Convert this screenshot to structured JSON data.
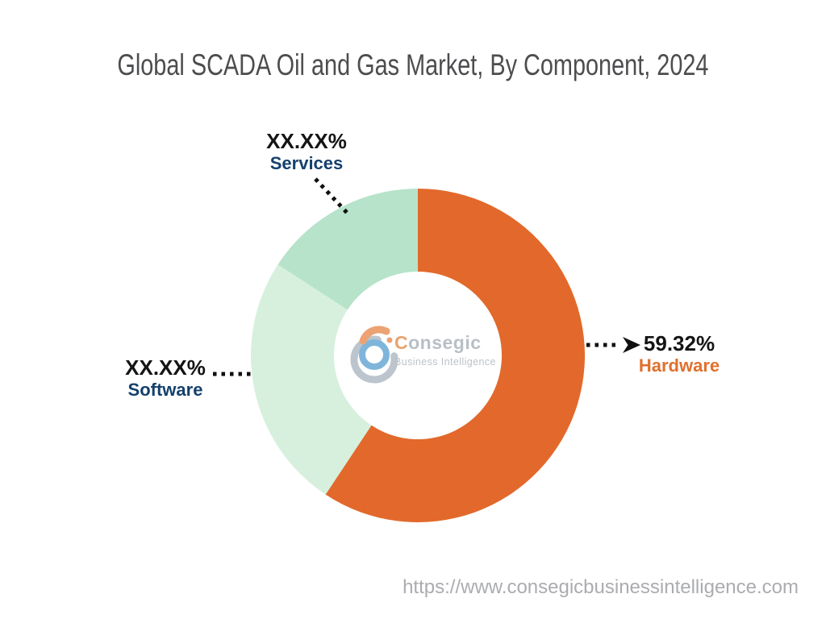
{
  "page": {
    "title": "Global SCADA Oil and Gas Market, By Component, 2024",
    "footer_url": "https://www.consegicbusinessintelligence.com"
  },
  "watermark": {
    "brand_name_initial": "C",
    "brand_name_rest": "onsegic",
    "tagline": "Business Intelligence"
  },
  "chart_data": {
    "type": "pie",
    "subtype": "donut",
    "title": "Global SCADA Oil and Gas Market, By Component, 2024",
    "unit": "%",
    "start_angle_deg": 0,
    "direction": "clockwise",
    "inner_radius_ratio": 0.5,
    "legend_position": "outside-labels",
    "segments": [
      {
        "name": "Hardware",
        "displayed_value": "59.32%",
        "value": 59.32,
        "color": "#E2692B",
        "label_color": "#E0702D"
      },
      {
        "name": "Software",
        "displayed_value": "XX.XX%",
        "value": 24.85,
        "color": "#D7F0DE",
        "label_color": "#14406D"
      },
      {
        "name": "Services",
        "displayed_value": "XX.XX%",
        "value": 15.83,
        "color": "#B6E3C9",
        "label_color": "#14406D"
      }
    ]
  }
}
